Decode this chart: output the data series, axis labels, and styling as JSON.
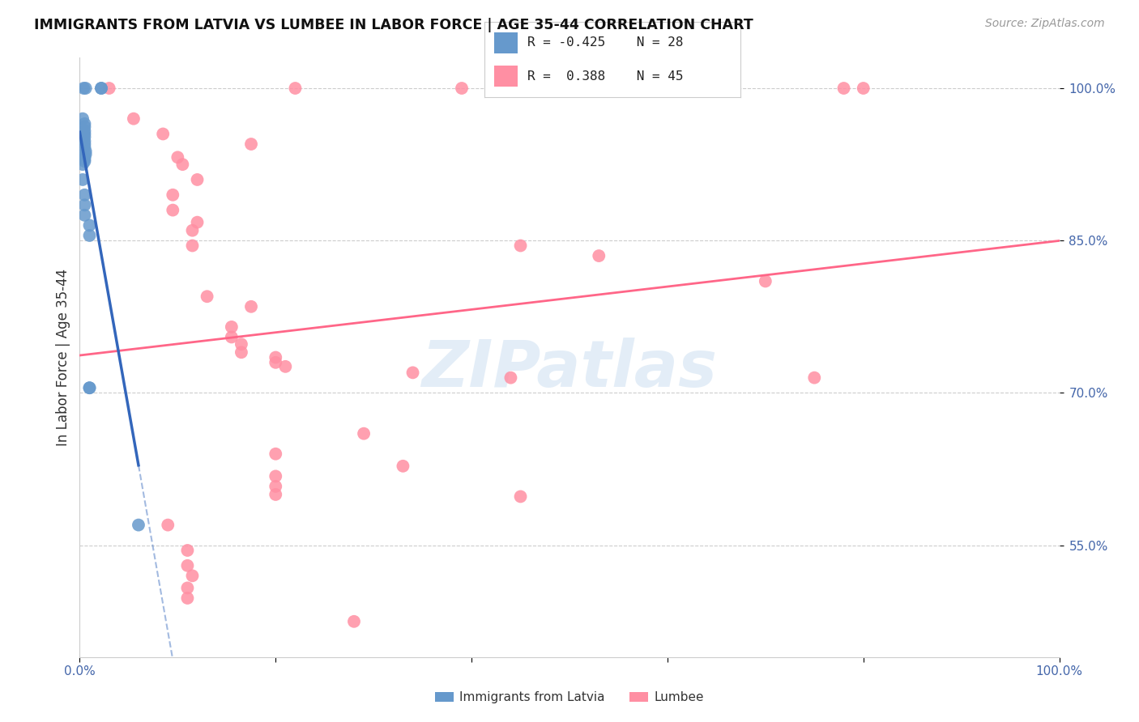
{
  "title": "IMMIGRANTS FROM LATVIA VS LUMBEE IN LABOR FORCE | AGE 35-44 CORRELATION CHART",
  "source": "Source: ZipAtlas.com",
  "ylabel": "In Labor Force | Age 35-44",
  "xlim": [
    0.0,
    100.0
  ],
  "ylim": [
    44.0,
    103.0
  ],
  "y_ticks": [
    55.0,
    70.0,
    85.0,
    100.0
  ],
  "y_tick_labels": [
    "55.0%",
    "70.0%",
    "85.0%",
    "100.0%"
  ],
  "x_tick_positions": [
    0.0,
    20.0,
    40.0,
    60.0,
    80.0,
    100.0
  ],
  "x_tick_labels": [
    "0.0%",
    "",
    "",
    "",
    "",
    "100.0%"
  ],
  "legend_r_latvia": "-0.425",
  "legend_n_latvia": "28",
  "legend_r_lumbee": "0.388",
  "legend_n_lumbee": "45",
  "color_latvia": "#6699CC",
  "color_lumbee": "#FF8FA3",
  "trendline_latvia_color": "#3366BB",
  "trendline_lumbee_color": "#FF6688",
  "watermark_text": "ZIPatlas",
  "latvia_points": [
    [
      0.4,
      100.0
    ],
    [
      0.6,
      100.0
    ],
    [
      2.2,
      100.0
    ],
    [
      2.2,
      100.0
    ],
    [
      0.3,
      97.0
    ],
    [
      0.5,
      96.5
    ],
    [
      0.5,
      96.2
    ],
    [
      0.5,
      95.8
    ],
    [
      0.5,
      95.5
    ],
    [
      0.5,
      95.2
    ],
    [
      0.5,
      94.8
    ],
    [
      0.5,
      94.5
    ],
    [
      0.5,
      94.2
    ],
    [
      0.6,
      93.8
    ],
    [
      0.6,
      93.5
    ],
    [
      0.5,
      93.2
    ],
    [
      0.5,
      93.0
    ],
    [
      0.5,
      92.8
    ],
    [
      0.3,
      92.5
    ],
    [
      0.3,
      91.0
    ],
    [
      0.5,
      89.5
    ],
    [
      0.5,
      88.5
    ],
    [
      0.5,
      87.5
    ],
    [
      1.0,
      86.5
    ],
    [
      1.0,
      85.5
    ],
    [
      1.0,
      70.5
    ],
    [
      1.0,
      70.5
    ],
    [
      6.0,
      57.0
    ]
  ],
  "lumbee_points": [
    [
      3.0,
      100.0
    ],
    [
      22.0,
      100.0
    ],
    [
      39.0,
      100.0
    ],
    [
      78.0,
      100.0
    ],
    [
      80.0,
      100.0
    ],
    [
      5.5,
      97.0
    ],
    [
      8.5,
      95.5
    ],
    [
      17.5,
      94.5
    ],
    [
      10.0,
      93.2
    ],
    [
      10.5,
      92.5
    ],
    [
      12.0,
      91.0
    ],
    [
      9.5,
      89.5
    ],
    [
      9.5,
      88.0
    ],
    [
      12.0,
      86.8
    ],
    [
      11.5,
      86.0
    ],
    [
      11.5,
      84.5
    ],
    [
      45.0,
      84.5
    ],
    [
      53.0,
      83.5
    ],
    [
      70.0,
      81.0
    ],
    [
      13.0,
      79.5
    ],
    [
      17.5,
      78.5
    ],
    [
      15.5,
      76.5
    ],
    [
      15.5,
      75.5
    ],
    [
      16.5,
      74.8
    ],
    [
      16.5,
      74.0
    ],
    [
      20.0,
      73.5
    ],
    [
      20.0,
      73.0
    ],
    [
      21.0,
      72.6
    ],
    [
      34.0,
      72.0
    ],
    [
      44.0,
      71.5
    ],
    [
      75.0,
      71.5
    ],
    [
      29.0,
      66.0
    ],
    [
      20.0,
      64.0
    ],
    [
      33.0,
      62.8
    ],
    [
      20.0,
      61.8
    ],
    [
      20.0,
      60.8
    ],
    [
      20.0,
      60.0
    ],
    [
      45.0,
      59.8
    ],
    [
      9.0,
      57.0
    ],
    [
      11.0,
      54.5
    ],
    [
      11.0,
      53.0
    ],
    [
      11.5,
      52.0
    ],
    [
      11.0,
      50.8
    ],
    [
      11.0,
      49.8
    ],
    [
      28.0,
      47.5
    ]
  ]
}
